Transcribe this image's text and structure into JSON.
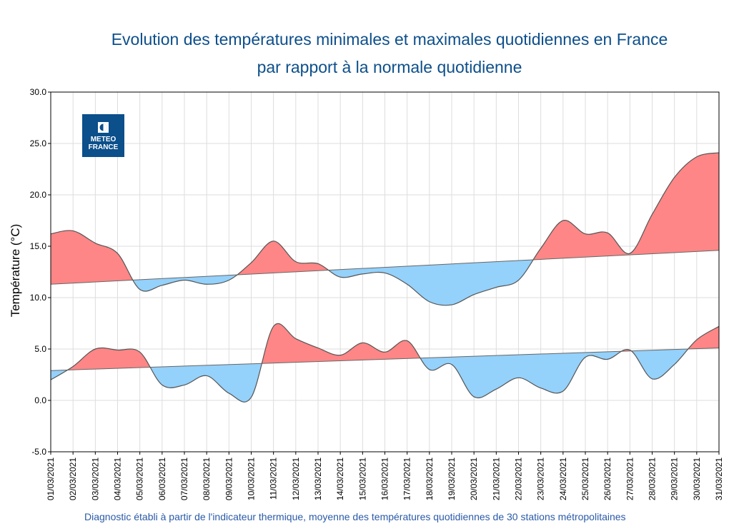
{
  "chart_data": {
    "type": "area",
    "title": [
      "Evolution des températures minimales et maximales quotidiennes en France",
      "par rapport à la normale quotidienne"
    ],
    "ylabel": "Température (°C)",
    "xlabel": "",
    "ylim": [
      -5,
      30
    ],
    "yticks": [
      "-5.0",
      "0.0",
      "5.0",
      "10.0",
      "15.0",
      "20.0",
      "25.0",
      "30.0"
    ],
    "grid": true,
    "categories": [
      "01/03/2021",
      "02/03/2021",
      "03/03/2021",
      "04/03/2021",
      "05/03/2021",
      "06/03/2021",
      "07/03/2021",
      "08/03/2021",
      "09/03/2021",
      "10/03/2021",
      "11/03/2021",
      "12/03/2021",
      "13/03/2021",
      "14/03/2021",
      "15/03/2021",
      "16/03/2021",
      "17/03/2021",
      "18/03/2021",
      "19/03/2021",
      "20/03/2021",
      "21/03/2021",
      "22/03/2021",
      "23/03/2021",
      "24/03/2021",
      "25/03/2021",
      "26/03/2021",
      "27/03/2021",
      "28/03/2021",
      "29/03/2021",
      "30/03/2021",
      "31/03/2021"
    ],
    "series": [
      {
        "values": [
          16.2,
          16.5,
          15.3,
          14.3,
          10.8,
          11.2,
          11.7,
          11.3,
          11.7,
          13.4,
          15.5,
          13.5,
          13.3,
          12.0,
          12.3,
          12.4,
          11.3,
          9.6,
          9.3,
          10.3,
          11.0,
          11.7,
          14.8,
          17.5,
          16.2,
          16.3,
          14.3,
          18.1,
          21.7,
          23.7,
          24.1
        ],
        "normal": [
          11.3,
          14.6
        ]
      },
      {
        "values": [
          2.0,
          3.3,
          5.0,
          4.9,
          4.7,
          1.5,
          1.5,
          2.4,
          0.7,
          0.3,
          7.2,
          6.0,
          5.1,
          4.4,
          5.6,
          4.7,
          5.8,
          3.0,
          3.5,
          0.35,
          1.1,
          2.2,
          1.2,
          0.9,
          4.2,
          4.0,
          4.9,
          2.1,
          3.5,
          5.9,
          7.2
        ],
        "normal": [
          2.9,
          5.1
        ]
      }
    ],
    "colors": {
      "above": "#ff8686",
      "below": "#94d1fb",
      "line": "#555555"
    }
  },
  "logo": {
    "text": [
      "METEO",
      "FRANCE"
    ],
    "color": "#0b4f8b"
  },
  "footer": "Diagnostic établi à partir de l'indicateur thermique, moyenne des températures quotidiennes de 30 stations métropolitaines"
}
